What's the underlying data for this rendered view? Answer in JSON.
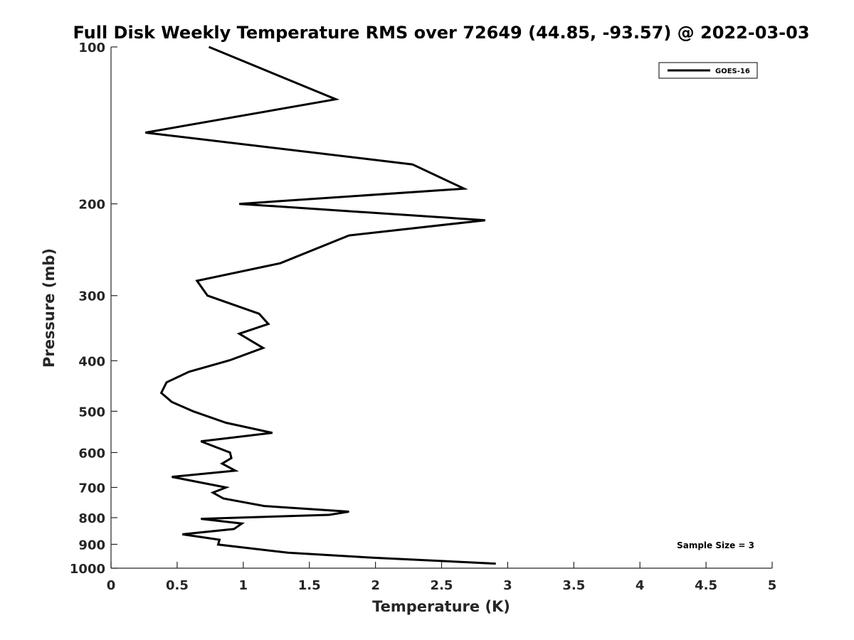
{
  "chart_data": {
    "type": "line",
    "title": "Full Disk Weekly Temperature RMS over 72649 (44.85, -93.57) @ 2022-03-03",
    "xlabel": "Temperature (K)",
    "ylabel": "Pressure (mb)",
    "xlim": [
      0,
      5
    ],
    "ylim": [
      100,
      1000
    ],
    "y_scale": "log",
    "y_reversed": true,
    "x_ticks": [
      "0",
      "0.5",
      "1",
      "1.5",
      "2",
      "2.5",
      "3",
      "3.5",
      "4",
      "4.5",
      "5"
    ],
    "y_ticks": [
      "100",
      "200",
      "300",
      "400",
      "500",
      "600",
      "700",
      "800",
      "900",
      "1000"
    ],
    "grid": false,
    "legend_position": "top-right",
    "annotation": "Sample Size = 3",
    "series": [
      {
        "name": "GOES-16",
        "color": "#000000",
        "points": [
          [
            0.74,
            100
          ],
          [
            1.7,
            126
          ],
          [
            0.26,
            146
          ],
          [
            2.28,
            168
          ],
          [
            2.67,
            187
          ],
          [
            0.97,
            200
          ],
          [
            2.83,
            215
          ],
          [
            1.8,
            230
          ],
          [
            1.28,
            260
          ],
          [
            0.65,
            281
          ],
          [
            0.73,
            300
          ],
          [
            1.12,
            325
          ],
          [
            1.19,
            340
          ],
          [
            0.97,
            355
          ],
          [
            1.15,
            378
          ],
          [
            0.9,
            399
          ],
          [
            0.59,
            420
          ],
          [
            0.42,
            440
          ],
          [
            0.38,
            461
          ],
          [
            0.46,
            480
          ],
          [
            0.62,
            500
          ],
          [
            0.87,
            526
          ],
          [
            1.22,
            550
          ],
          [
            0.68,
            571
          ],
          [
            0.9,
            600
          ],
          [
            0.91,
            615
          ],
          [
            0.84,
            630
          ],
          [
            0.94,
            650
          ],
          [
            0.46,
            668
          ],
          [
            0.87,
            700
          ],
          [
            0.77,
            716
          ],
          [
            0.85,
            735
          ],
          [
            1.16,
            760
          ],
          [
            1.8,
            779
          ],
          [
            1.65,
            790
          ],
          [
            0.68,
            804
          ],
          [
            0.99,
            821
          ],
          [
            0.93,
            841
          ],
          [
            0.54,
            861
          ],
          [
            0.82,
            882
          ],
          [
            0.81,
            901
          ],
          [
            1.34,
            934
          ],
          [
            1.98,
            955
          ],
          [
            2.91,
            980
          ]
        ]
      }
    ]
  }
}
